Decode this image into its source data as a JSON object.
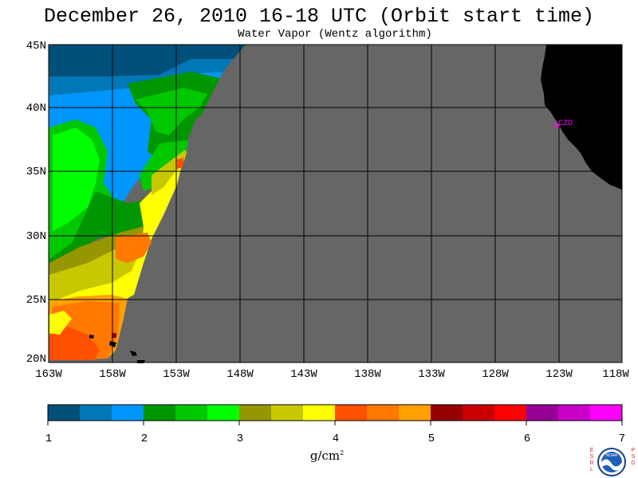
{
  "title": "December 26, 2010  16-18 UTC  (Orbit start time)",
  "subtitle": "Water Vapor (Wentz algorithm)",
  "map": {
    "lat_labels": [
      "45N",
      "40N",
      "35N",
      "30N",
      "25N",
      "20N"
    ],
    "lon_labels": [
      "163W",
      "158W",
      "153W",
      "148W",
      "143W",
      "138W",
      "133W",
      "128W",
      "123W",
      "118W"
    ],
    "lat_range": [
      20,
      45
    ],
    "lon_range": [
      -163,
      -118
    ],
    "station_label": "CZD",
    "no_data_color": "#666666",
    "land_color": "#000000"
  },
  "colorbar": {
    "tick_labels": [
      "1",
      "2",
      "3",
      "4",
      "5",
      "6",
      "7"
    ],
    "unit": "g/cm",
    "unit_exp": "2",
    "colors": [
      "#005079",
      "#0078b8",
      "#0096ff",
      "#009600",
      "#00c800",
      "#00ff00",
      "#969600",
      "#c8c800",
      "#ffff00",
      "#ff5000",
      "#ff7800",
      "#ffa000",
      "#960000",
      "#c80000",
      "#ff0000",
      "#960096",
      "#c800c8",
      "#ff00ff"
    ]
  },
  "logo": {
    "left_text": [
      "E",
      "S",
      "R",
      "L"
    ],
    "right_text": [
      "P",
      "S",
      "D"
    ],
    "name": "NOAA"
  }
}
